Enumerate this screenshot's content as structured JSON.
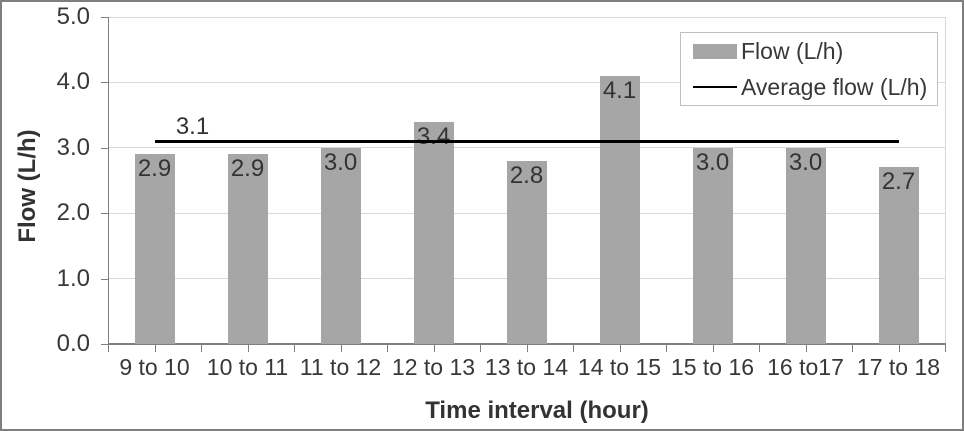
{
  "chart_data": {
    "type": "bar",
    "title": "",
    "xlabel": "Time interval (hour)",
    "ylabel": "Flow (L/h)",
    "categories": [
      "9 to 10",
      "10 to 11",
      "11 to 12",
      "12 to 13",
      "13 to 14",
      "14 to 15",
      "15 to 16",
      "16 to17",
      "17 to 18"
    ],
    "series": [
      {
        "name": "Flow (L/h)",
        "type": "bar",
        "values": [
          2.9,
          2.9,
          3.0,
          3.4,
          2.8,
          4.1,
          3.0,
          3.0,
          2.7
        ]
      },
      {
        "name": "Average flow (L/h)",
        "type": "line",
        "value": 3.1,
        "label": "3.1"
      }
    ],
    "value_labels": [
      "2.9",
      "2.9",
      "3.0",
      "3.4",
      "2.8",
      "4.1",
      "3.0",
      "3.0",
      "2.7"
    ],
    "ylim": [
      0.0,
      5.0
    ],
    "ytick_step": 1.0,
    "ytick_labels": [
      "0.0",
      "1.0",
      "2.0",
      "3.0",
      "4.0",
      "5.0"
    ],
    "grid": "horizontal",
    "legend_position": "top-right",
    "colors": {
      "bar_fill": "#a6a6a6",
      "average_line": "#000000",
      "gridline": "#d9d9d9",
      "axis_line": "#7f7f7f",
      "plot_border": "#d9d9d9",
      "outer_border": "#7f7f7f",
      "text": "#383838",
      "background": "#ffffff"
    }
  },
  "legend": {
    "items": [
      {
        "label": "Flow (L/h)",
        "swatch": "bar-swatch"
      },
      {
        "label": "Average flow (L/h)",
        "swatch": "line-swatch"
      }
    ]
  }
}
